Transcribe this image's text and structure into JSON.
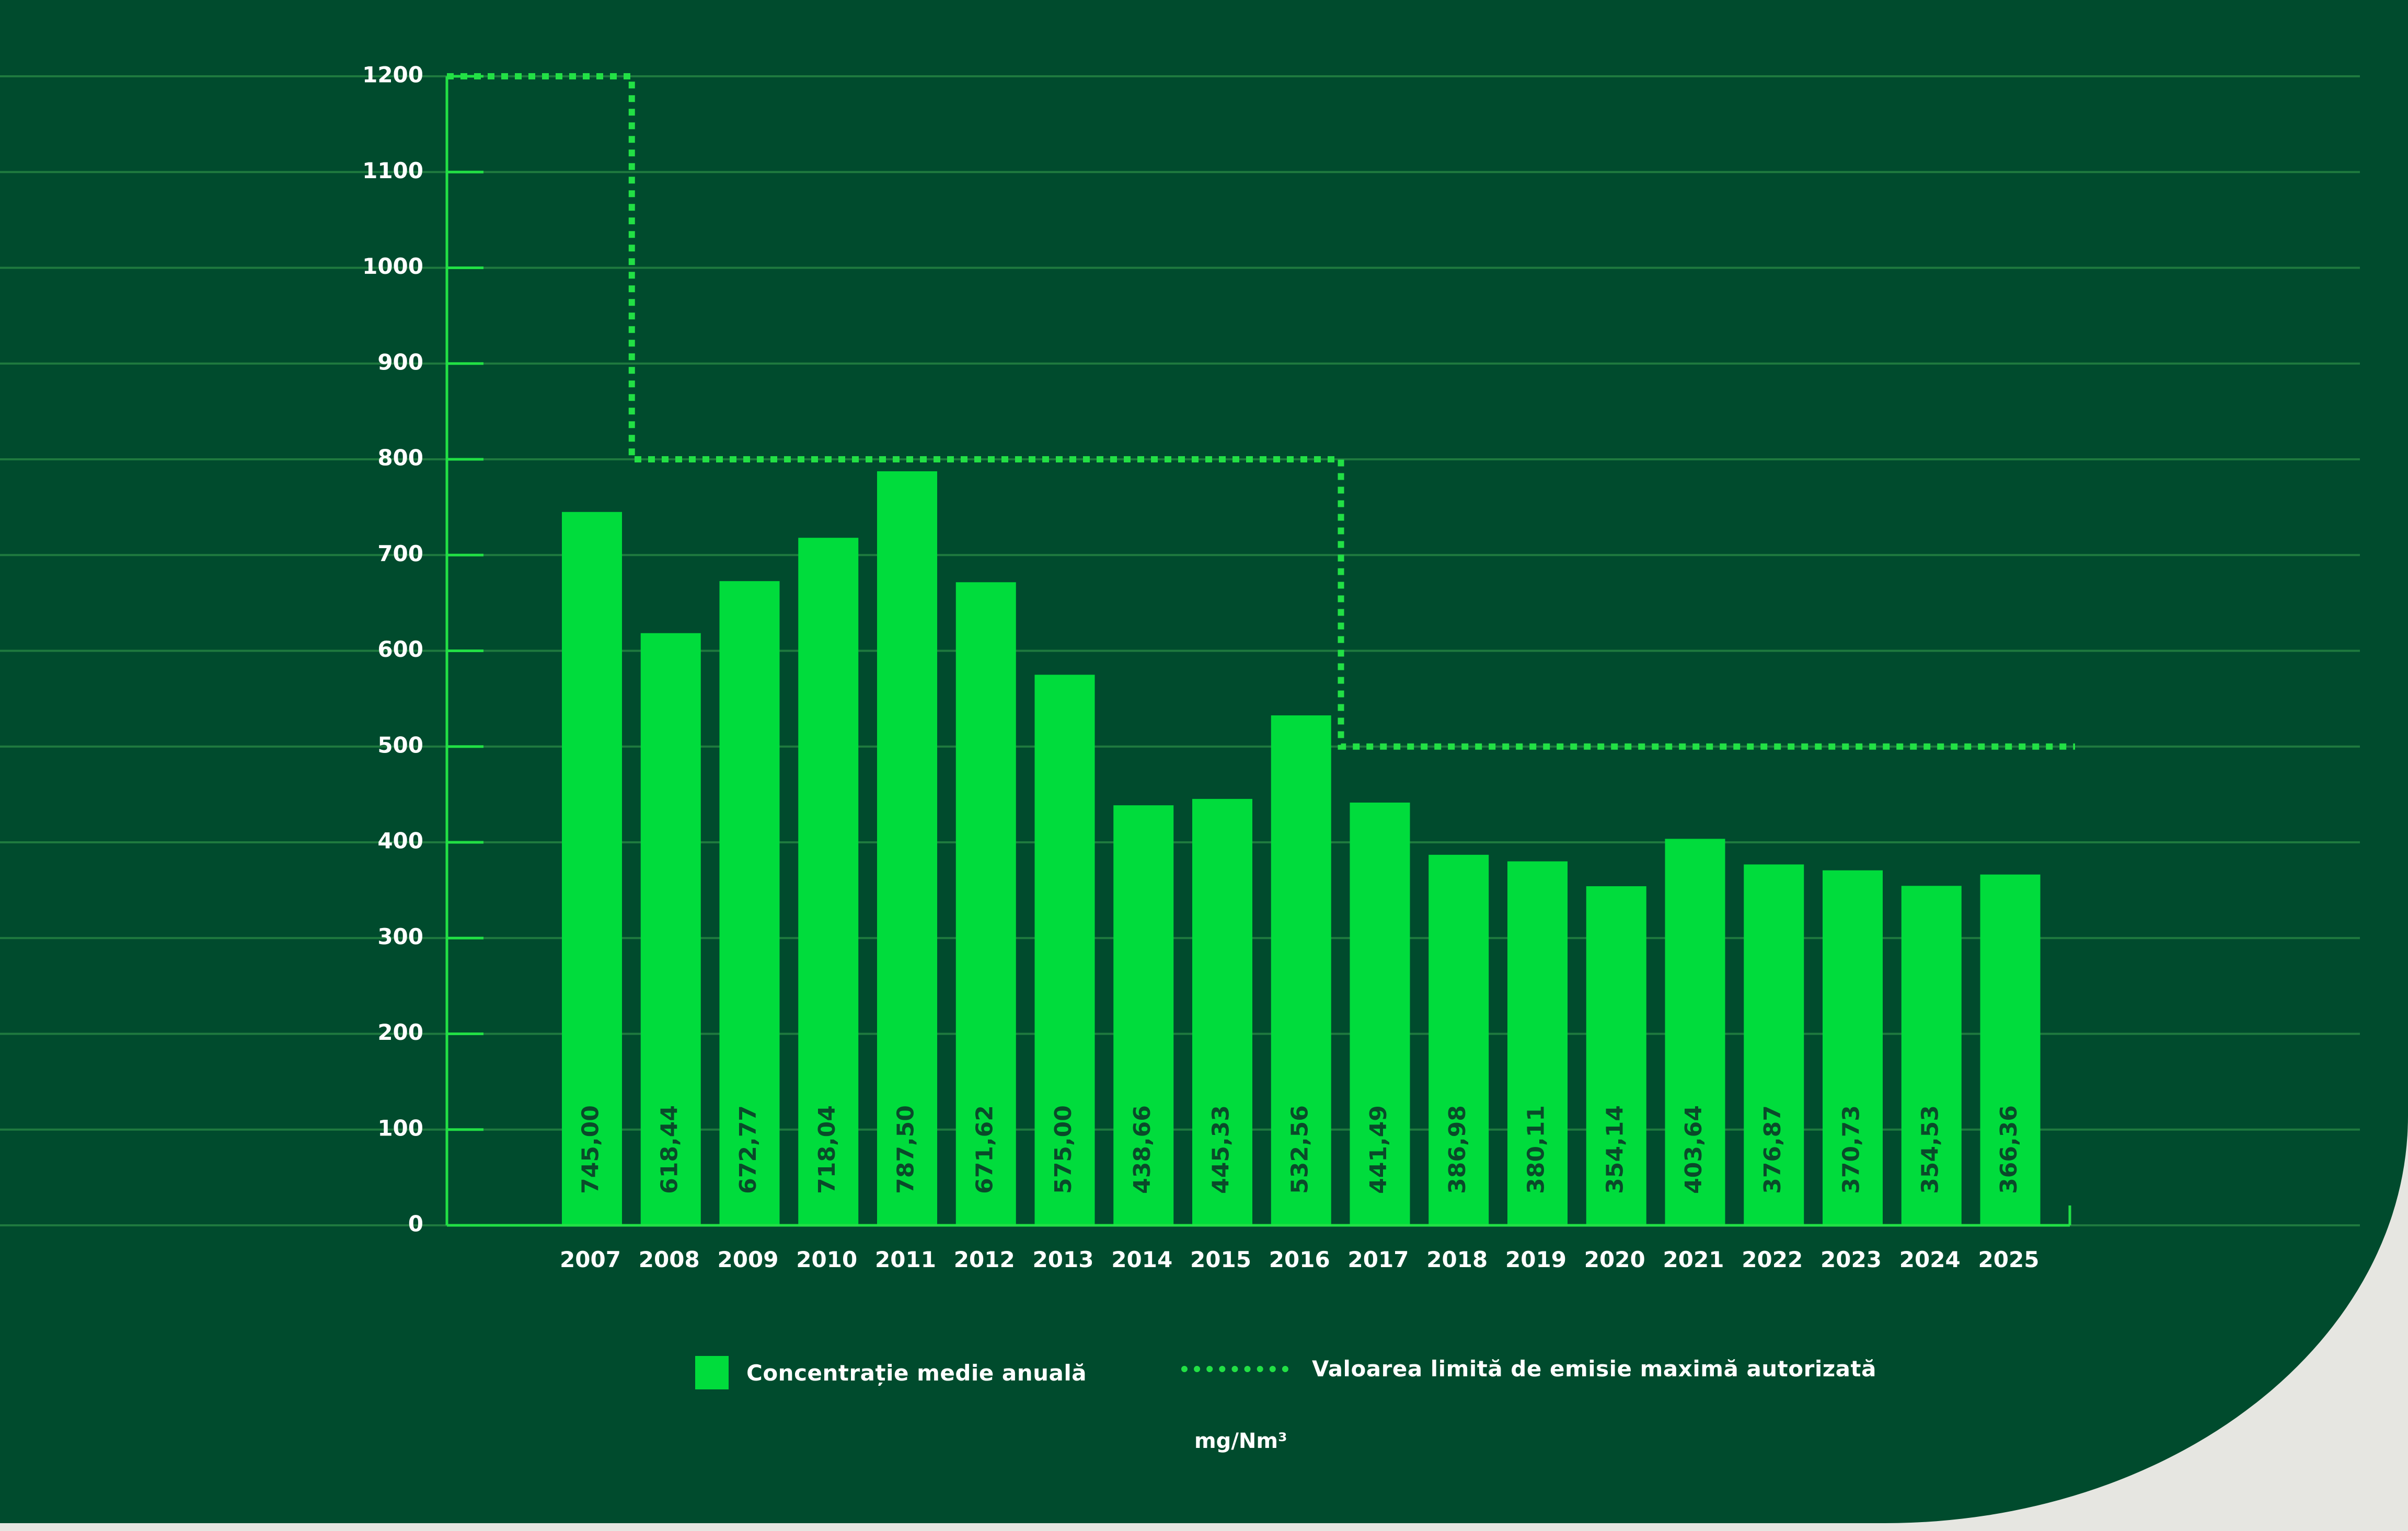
{
  "colors": {
    "background": "#004b2d",
    "bar": "#00dc3c",
    "limit_line": "#22e045",
    "axis": "#22e045",
    "grid": "#1f7a3f",
    "tick_text": "#ffffff",
    "bar_label": "#0a4a2a"
  },
  "chart_data": {
    "type": "bar",
    "categories": [
      "2007",
      "2008",
      "2009",
      "2010",
      "2011",
      "2012",
      "2013",
      "2014",
      "2015",
      "2016",
      "2017",
      "2018",
      "2019",
      "2020",
      "2021",
      "2022",
      "2023",
      "2024",
      "2025"
    ],
    "series": [
      {
        "name": "Concentrație medie anuală",
        "values": [
          745.0,
          618.44,
          672.77,
          718.04,
          787.5,
          671.62,
          575.0,
          438.66,
          445.33,
          532.56,
          441.49,
          386.98,
          380.11,
          354.14,
          403.64,
          376.87,
          370.73,
          354.53,
          366.36
        ],
        "value_labels": [
          "745,00",
          "618,44",
          "672,77",
          "718,04",
          "787,50",
          "671,62",
          "575,00",
          "438,66",
          "445,33",
          "532,56",
          "441,49",
          "386,98",
          "380,11",
          "354,14",
          "403,64",
          "376,87",
          "370,73",
          "354,53",
          "366,36"
        ]
      }
    ],
    "limit_line": {
      "name": "Valoarea limită de emisie maximă autorizată",
      "style": "dotted step",
      "steps": [
        {
          "from": "2007",
          "to": "2008",
          "value": 1200
        },
        {
          "from": "2008",
          "to": "2017",
          "value": 800
        },
        {
          "from": "2017",
          "to": "2025",
          "value": 500
        }
      ]
    },
    "y_ticks": [
      "0",
      "100",
      "200",
      "300",
      "400",
      "500",
      "600",
      "700",
      "800",
      "900",
      "1000",
      "1100",
      "1200"
    ],
    "ylim": [
      0,
      1200
    ],
    "grid": true,
    "unit": "mg/Nm³",
    "legend_position": "bottom"
  }
}
